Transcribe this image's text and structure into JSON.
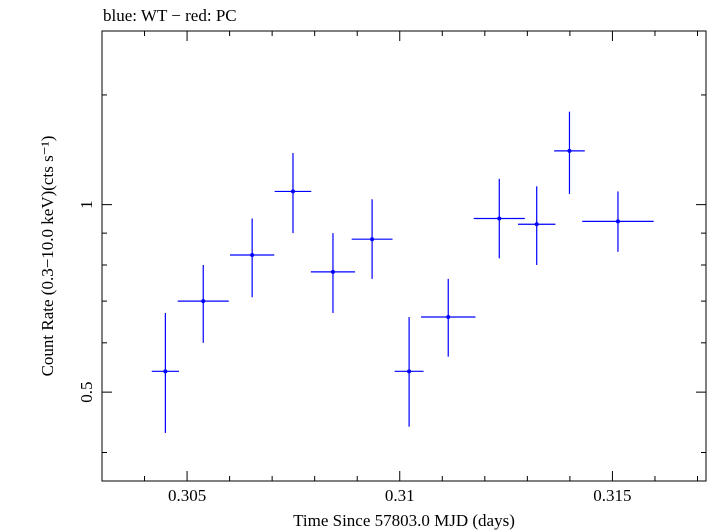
{
  "chart_data": {
    "type": "scatter",
    "title": "blue: WT − red: PC",
    "xlabel": "Time Since 57803.0 MJD (days)",
    "ylabel": "Count Rate (0.3−10.0 keV)(cts s⁻¹)",
    "xlim": [
      0.303,
      0.3172
    ],
    "ylim": [
      0.36,
      1.9
    ],
    "yscale": "log",
    "xticks": [
      {
        "value": 0.305,
        "label": "0.305"
      },
      {
        "value": 0.31,
        "label": "0.31"
      },
      {
        "value": 0.315,
        "label": "0.315"
      }
    ],
    "yticks": [
      {
        "value": 0.5,
        "label": "0.5"
      },
      {
        "value": 1,
        "label": "1"
      }
    ],
    "series": [
      {
        "color": "#0000ff",
        "points": [
          {
            "x": 0.30449,
            "xerr": 0.00032,
            "y": 0.54,
            "ylo": 0.43,
            "yhi": 0.67
          },
          {
            "x": 0.30538,
            "xerr": 0.0006,
            "y": 0.7,
            "ylo": 0.6,
            "yhi": 0.8
          },
          {
            "x": 0.30653,
            "xerr": 0.00052,
            "y": 0.83,
            "ylo": 0.71,
            "yhi": 0.95
          },
          {
            "x": 0.30749,
            "xerr": 0.00043,
            "y": 1.05,
            "ylo": 0.9,
            "yhi": 1.21
          },
          {
            "x": 0.30843,
            "xerr": 0.00052,
            "y": 0.78,
            "ylo": 0.67,
            "yhi": 0.9
          },
          {
            "x": 0.30935,
            "xerr": 0.00048,
            "y": 0.88,
            "ylo": 0.76,
            "yhi": 1.02
          },
          {
            "x": 0.31022,
            "xerr": 0.00034,
            "y": 0.54,
            "ylo": 0.44,
            "yhi": 0.66
          },
          {
            "x": 0.31114,
            "xerr": 0.00064,
            "y": 0.66,
            "ylo": 0.57,
            "yhi": 0.76
          },
          {
            "x": 0.31234,
            "xerr": 0.0006,
            "y": 0.95,
            "ylo": 0.82,
            "yhi": 1.1
          },
          {
            "x": 0.31322,
            "xerr": 0.00044,
            "y": 0.93,
            "ylo": 0.8,
            "yhi": 1.07
          },
          {
            "x": 0.31399,
            "xerr": 0.00036,
            "y": 1.22,
            "ylo": 1.04,
            "yhi": 1.41
          },
          {
            "x": 0.31513,
            "xerr": 0.00084,
            "y": 0.94,
            "ylo": 0.84,
            "yhi": 1.05
          }
        ]
      }
    ]
  }
}
